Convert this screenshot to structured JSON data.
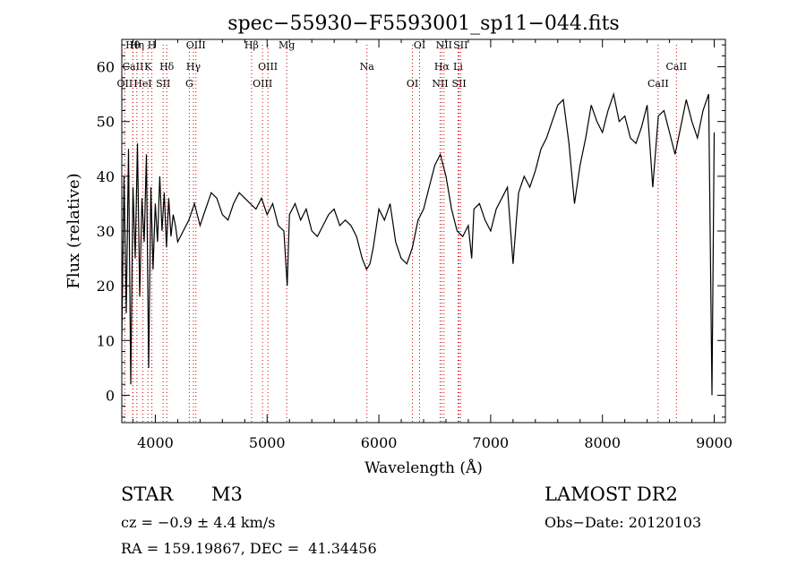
{
  "colors": {
    "line_marker": "#cc0000",
    "spectrum": "#000000",
    "axis": "#000000"
  },
  "info": {
    "object_class": "STAR",
    "subclass": "M3",
    "survey": "LAMOST DR2",
    "redshift": "cz = −0.9 ± 4.4 km/s",
    "obs_date": "Obs−Date: 20120103",
    "coords": "RA = 159.19867, DEC =  41.34456"
  },
  "chart_data": {
    "type": "line",
    "title": "spec−55930−F5593001_sp11−044.fits",
    "xlabel": "Wavelength (Å)",
    "ylabel": "Flux (relative)",
    "xlim": [
      3700,
      9100
    ],
    "ylim": [
      -5,
      65
    ],
    "xticks": [
      4000,
      5000,
      6000,
      7000,
      8000,
      9000
    ],
    "yticks": [
      0,
      10,
      20,
      30,
      40,
      50,
      60
    ],
    "grid": false,
    "legend": "none",
    "series": [
      {
        "x": [
          3700,
          3720,
          3740,
          3760,
          3780,
          3800,
          3820,
          3840,
          3860,
          3880,
          3900,
          3920,
          3940,
          3960,
          3980,
          4000,
          4020,
          4040,
          4060,
          4080,
          4100,
          4120,
          4140,
          4160,
          4180,
          4200,
          4250,
          4300,
          4350,
          4400,
          4450,
          4500,
          4550,
          4600,
          4650,
          4700,
          4750,
          4800,
          4850,
          4900,
          4950,
          5000,
          5050,
          5100,
          5150,
          5180,
          5200,
          5250,
          5300,
          5350,
          5400,
          5450,
          5500,
          5550,
          5600,
          5650,
          5700,
          5750,
          5800,
          5850,
          5890,
          5920,
          5950,
          6000,
          6050,
          6100,
          6150,
          6200,
          6250,
          6300,
          6350,
          6400,
          6450,
          6500,
          6550,
          6600,
          6650,
          6700,
          6750,
          6800,
          6830,
          6850,
          6900,
          6950,
          7000,
          7050,
          7100,
          7150,
          7200,
          7230,
          7250,
          7300,
          7350,
          7400,
          7450,
          7500,
          7550,
          7600,
          7650,
          7700,
          7750,
          7800,
          7850,
          7900,
          7950,
          8000,
          8050,
          8100,
          8150,
          8200,
          8250,
          8300,
          8350,
          8400,
          8450,
          8500,
          8550,
          8600,
          8650,
          8700,
          8750,
          8800,
          8850,
          8900,
          8950,
          8980,
          9000
        ],
        "y": [
          10,
          40,
          15,
          45,
          2,
          38,
          25,
          46,
          18,
          36,
          28,
          44,
          5,
          38,
          23,
          35,
          28,
          40,
          30,
          37,
          27,
          36,
          29,
          33,
          31,
          28,
          30,
          32,
          35,
          31,
          34,
          37,
          36,
          33,
          32,
          35,
          37,
          36,
          35,
          34,
          36,
          33,
          35,
          31,
          30,
          20,
          33,
          35,
          32,
          34,
          30,
          29,
          31,
          33,
          34,
          31,
          32,
          31,
          29,
          25,
          23,
          24,
          27,
          34,
          32,
          35,
          28,
          25,
          24,
          27,
          32,
          34,
          38,
          42,
          44,
          40,
          34,
          30,
          29,
          31,
          25,
          34,
          35,
          32,
          30,
          34,
          36,
          38,
          24,
          32,
          37,
          40,
          38,
          41,
          45,
          47,
          50,
          53,
          54,
          46,
          35,
          42,
          47,
          53,
          50,
          48,
          52,
          55,
          50,
          51,
          47,
          46,
          49,
          53,
          38,
          51,
          52,
          48,
          44,
          49,
          54,
          50,
          47,
          52,
          55,
          0,
          48
        ]
      }
    ],
    "annotations": [
      {
        "label": "Hθ",
        "x": 3798
      },
      {
        "label": "CaII",
        "x": 3800
      },
      {
        "label": "OII",
        "x": 3727
      },
      {
        "label": "Hη",
        "x": 3835
      },
      {
        "label": "K",
        "x": 3934
      },
      {
        "label": "HeI",
        "x": 3888
      },
      {
        "label": "H",
        "x": 3969
      },
      {
        "label": "Hδ",
        "x": 4102
      },
      {
        "label": "SII",
        "x": 4070
      },
      {
        "label": "OIII",
        "x": 4363
      },
      {
        "label": "Hγ",
        "x": 4341
      },
      {
        "label": "G",
        "x": 4304
      },
      {
        "label": "Hβ",
        "x": 4861
      },
      {
        "label": "OIII",
        "x": 5007
      },
      {
        "label": "OIII",
        "x": 4959
      },
      {
        "label": "Mg",
        "x": 5175
      },
      {
        "label": "Na",
        "x": 5893
      },
      {
        "label": "OI",
        "x": 6300
      },
      {
        "label": "OI",
        "x": 6364
      },
      {
        "label": "Hα",
        "x": 6563
      },
      {
        "label": "SII",
        "x": 6717
      },
      {
        "label": "NII",
        "x": 6583
      },
      {
        "label": "Li",
        "x": 6708
      },
      {
        "label": "NII",
        "x": 6548
      },
      {
        "label": "SII",
        "x": 6731
      },
      {
        "label": "CaII",
        "x": 8662
      },
      {
        "label": "CaII",
        "x": 8498
      }
    ]
  }
}
